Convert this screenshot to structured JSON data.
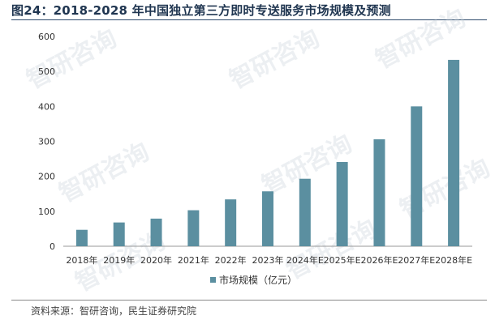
{
  "header": {
    "title": "图24：2018-2028 年中国独立第三方即时专送服务市场规模及预测"
  },
  "watermark_text": "智研咨询",
  "chart_data": {
    "type": "bar",
    "categories": [
      "2018年",
      "2019年",
      "2020年",
      "2021年",
      "2022年",
      "2023年",
      "2024年E",
      "2025年E",
      "2026年E",
      "2027年E",
      "2028年E"
    ],
    "series": [
      {
        "name": "市场规模（亿元）",
        "values": [
          47,
          68,
          79,
          103,
          134,
          157,
          193,
          241,
          306,
          400,
          533
        ]
      }
    ],
    "yticks": [
      0,
      100,
      200,
      300,
      400,
      500,
      600
    ],
    "ylim": [
      0,
      600
    ],
    "grid": false,
    "legend_position": "bottom",
    "colors": {
      "bar": "#5b8fa0",
      "axis": "#999999"
    }
  },
  "footer": {
    "source": "资料来源：智研咨询，民生证券研究院"
  }
}
